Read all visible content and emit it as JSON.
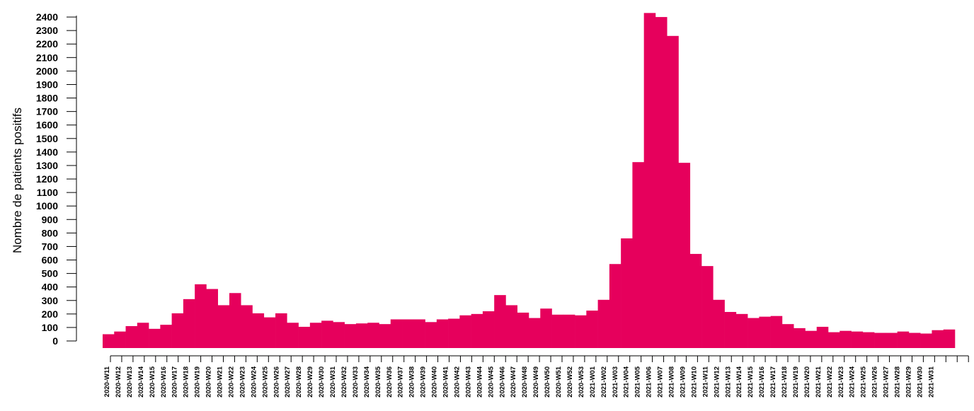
{
  "chart_data": {
    "type": "bar",
    "title": "",
    "xlabel": "",
    "ylabel": "Nombre de patients positifs",
    "ylim": [
      0,
      2450
    ],
    "yticks": [
      0,
      100,
      200,
      300,
      400,
      500,
      600,
      700,
      800,
      900,
      1000,
      1100,
      1200,
      1300,
      1400,
      1500,
      1600,
      1700,
      1800,
      1900,
      2000,
      2100,
      2200,
      2300,
      2400
    ],
    "color": "#e6005c",
    "grid": false,
    "x_tick_labels": [
      "2020-W11",
      "2020-W12",
      "2020-W13",
      "2020-W14",
      "2020-W15",
      "2020-W16",
      "2020-W17",
      "2020-W18",
      "2020-W19",
      "2020-W20",
      "2020-W21",
      "2020-W22",
      "2020-W23",
      "2020-W24",
      "2020-W25",
      "2020-W26",
      "2020-W27",
      "2020-W28",
      "2020-W29",
      "2020-W30",
      "2020-W31",
      "2020-W32",
      "2020-W33",
      "2020-W34",
      "2020-W35",
      "2020-W36",
      "2020-W37",
      "2020-W38",
      "2020-W39",
      "2020-W40",
      "2020-W41",
      "2020-W42",
      "2020-W43",
      "2020-W44",
      "2020-W45",
      "2020-W46",
      "2020-W47",
      "2020-W48",
      "2020-W49",
      "2020-W50",
      "2020-W51",
      "2020-W52",
      "2020-W53",
      "2021-W01",
      "2021-W02",
      "2021-W03",
      "2021-W04",
      "2021-W05",
      "2021-W06",
      "2021-W07",
      "2021-W08",
      "2021-W09",
      "2021-W10",
      "2021-W11",
      "2021-W12",
      "2021-W13",
      "2021-W14",
      "2021-W15",
      "2021-W16",
      "2021-W17",
      "2021-W18",
      "2021-W19",
      "2021-W20",
      "2021-W21",
      "2021-W22",
      "2021-W23",
      "2021-W24",
      "2021-W25",
      "2021-W26",
      "2021-W27",
      "2021-W28",
      "2021-W29",
      "2021-W30",
      "2021-W31"
    ],
    "values": [
      50,
      70,
      110,
      135,
      90,
      120,
      205,
      310,
      420,
      385,
      265,
      355,
      265,
      205,
      175,
      205,
      135,
      105,
      135,
      150,
      140,
      125,
      130,
      135,
      125,
      160,
      160,
      160,
      140,
      160,
      165,
      190,
      200,
      220,
      340,
      265,
      210,
      170,
      240,
      195,
      195,
      190,
      225,
      305,
      570,
      760,
      1325,
      2430,
      2400,
      2260,
      1320,
      645,
      555,
      305,
      215,
      200,
      170,
      180,
      185,
      125,
      95,
      75,
      105,
      65,
      75,
      70,
      65,
      60,
      60,
      70,
      60,
      55,
      80,
      85
    ]
  }
}
